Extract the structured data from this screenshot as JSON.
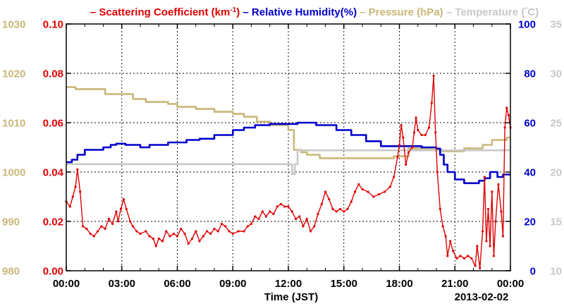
{
  "chart_data": {
    "type": "line",
    "legend": [
      {
        "prefix": "–",
        "text": "Scattering Coefficient (km",
        "sup": "-1",
        "suffix": ")",
        "color": "#e00000"
      },
      {
        "prefix": "–",
        "text": "Relative Humidity(%)",
        "color": "#0000cc"
      },
      {
        "prefix": "–",
        "text": "Pressure (hPa)",
        "color": "#c8b878"
      },
      {
        "prefix": "–",
        "text": "Temperature (",
        "glyph": "°",
        "suffix": "C)",
        "color": "#c8c8c8"
      }
    ],
    "xlabel": "Time (JST)",
    "date_label": "2013-02-02",
    "x_ticks": [
      "00:00",
      "03:00",
      "06:00",
      "09:00",
      "12:00",
      "15:00",
      "18:00",
      "21:00",
      "00:00"
    ],
    "x_range_hours": [
      0,
      24
    ],
    "grid": true,
    "axes": {
      "pressure": {
        "ticks": [
          "1030",
          "1020",
          "1010",
          "1000",
          "990",
          "980"
        ],
        "range": [
          980,
          1030
        ],
        "color": "#c8b878"
      },
      "scattering": {
        "ticks": [
          "0.10",
          "0.08",
          "0.06",
          "0.04",
          "0.02",
          "0.00"
        ],
        "range": [
          0,
          0.1
        ],
        "color": "#e00000"
      },
      "humidity": {
        "ticks": [
          "100",
          "80",
          "60",
          "40",
          "20",
          "0"
        ],
        "range": [
          0,
          100
        ],
        "color": "#0000cc"
      },
      "temperature": {
        "ticks": [
          "35",
          "30",
          "25",
          "20",
          "15",
          "10"
        ],
        "range": [
          10,
          35
        ],
        "color": "#c8c8c8"
      }
    },
    "series": [
      {
        "key": "pressure",
        "axis": "pressure",
        "color": "#c8b878",
        "step": true,
        "points": [
          [
            0,
            1017.2
          ],
          [
            0.5,
            1016.8
          ],
          [
            1.5,
            1016.8
          ],
          [
            2.1,
            1015.8
          ],
          [
            3.0,
            1015.8
          ],
          [
            3.6,
            1014.8
          ],
          [
            4.3,
            1014.2
          ],
          [
            5.5,
            1013.8
          ],
          [
            6.0,
            1013.2
          ],
          [
            7.0,
            1012.8
          ],
          [
            8.0,
            1012.2
          ],
          [
            9.0,
            1011.8
          ],
          [
            9.6,
            1011.2
          ],
          [
            10.3,
            1010.2
          ],
          [
            11.0,
            1009.5
          ],
          [
            12.0,
            1008.5
          ],
          [
            12.3,
            1004.5
          ],
          [
            12.7,
            1004.0
          ],
          [
            13.0,
            1003.5
          ],
          [
            13.7,
            1002.8
          ],
          [
            14.5,
            1002.8
          ],
          [
            15.0,
            1002.8
          ],
          [
            16.5,
            1002.8
          ],
          [
            17.7,
            1003.2
          ],
          [
            18.5,
            1004.8
          ],
          [
            19.5,
            1004.8
          ],
          [
            20.0,
            1004.5
          ],
          [
            20.3,
            1004.2
          ],
          [
            20.6,
            1004.2
          ],
          [
            21.5,
            1004.8
          ],
          [
            22.5,
            1005.5
          ],
          [
            23.0,
            1006.5
          ],
          [
            23.8,
            1007.0
          ],
          [
            24,
            1007.0
          ]
        ]
      },
      {
        "key": "temperature",
        "axis": "temperature",
        "color": "#c8c8c8",
        "step": true,
        "points": [
          [
            0,
            20.8
          ],
          [
            12.0,
            20.8
          ],
          [
            12.2,
            19.8
          ],
          [
            12.35,
            20.8
          ],
          [
            12.5,
            22.2
          ],
          [
            14.0,
            22.2
          ],
          [
            18.0,
            22.2
          ],
          [
            19.8,
            22.2
          ],
          [
            20.0,
            22.2
          ],
          [
            24,
            22.2
          ]
        ]
      },
      {
        "key": "humidity",
        "axis": "humidity",
        "color": "#0000cc",
        "step": true,
        "points": [
          [
            0,
            44
          ],
          [
            0.3,
            45
          ],
          [
            0.6,
            47
          ],
          [
            1.0,
            49
          ],
          [
            2.0,
            50
          ],
          [
            2.4,
            51
          ],
          [
            2.7,
            51.5
          ],
          [
            3.2,
            51
          ],
          [
            4.0,
            50
          ],
          [
            4.5,
            51
          ],
          [
            5.5,
            52
          ],
          [
            6.5,
            53
          ],
          [
            7.2,
            53.5
          ],
          [
            8.0,
            55
          ],
          [
            9.0,
            57
          ],
          [
            9.6,
            58
          ],
          [
            10.2,
            59
          ],
          [
            11.0,
            59.5
          ],
          [
            12.0,
            59.5
          ],
          [
            12.5,
            60
          ],
          [
            13.5,
            59
          ],
          [
            14.2,
            59
          ],
          [
            14.6,
            57
          ],
          [
            15.4,
            55
          ],
          [
            16.2,
            52.5
          ],
          [
            17.0,
            50.5
          ],
          [
            18.5,
            50.5
          ],
          [
            19.2,
            50
          ],
          [
            20.0,
            49.5
          ],
          [
            20.2,
            47
          ],
          [
            20.4,
            43
          ],
          [
            20.6,
            40
          ],
          [
            21.0,
            37
          ],
          [
            21.5,
            35.5
          ],
          [
            22.0,
            35.5
          ],
          [
            22.3,
            36.5
          ],
          [
            22.6,
            37.5
          ],
          [
            22.9,
            40
          ],
          [
            23.3,
            38
          ],
          [
            23.6,
            39
          ],
          [
            24,
            39
          ]
        ]
      },
      {
        "key": "scattering",
        "axis": "scattering",
        "color": "#e00000",
        "step": false,
        "markers": true,
        "points": [
          [
            0,
            0.028
          ],
          [
            0.2,
            0.026
          ],
          [
            0.35,
            0.03
          ],
          [
            0.5,
            0.034
          ],
          [
            0.6,
            0.041
          ],
          [
            0.75,
            0.032
          ],
          [
            0.9,
            0.018
          ],
          [
            1.1,
            0.017
          ],
          [
            1.3,
            0.015
          ],
          [
            1.5,
            0.014
          ],
          [
            1.7,
            0.016
          ],
          [
            1.9,
            0.018
          ],
          [
            2.1,
            0.017
          ],
          [
            2.3,
            0.021
          ],
          [
            2.5,
            0.019
          ],
          [
            2.7,
            0.024
          ],
          [
            2.8,
            0.02
          ],
          [
            2.95,
            0.025
          ],
          [
            3.1,
            0.029
          ],
          [
            3.25,
            0.025
          ],
          [
            3.45,
            0.02
          ],
          [
            3.6,
            0.018
          ],
          [
            3.8,
            0.016
          ],
          [
            4.0,
            0.015
          ],
          [
            4.3,
            0.016
          ],
          [
            4.5,
            0.014
          ],
          [
            4.7,
            0.013
          ],
          [
            4.85,
            0.01
          ],
          [
            5.0,
            0.013
          ],
          [
            5.2,
            0.012
          ],
          [
            5.4,
            0.016
          ],
          [
            5.6,
            0.014
          ],
          [
            5.8,
            0.015
          ],
          [
            6.0,
            0.014
          ],
          [
            6.2,
            0.017
          ],
          [
            6.4,
            0.015
          ],
          [
            6.6,
            0.011
          ],
          [
            6.8,
            0.013
          ],
          [
            7.0,
            0.016
          ],
          [
            7.2,
            0.012
          ],
          [
            7.4,
            0.014
          ],
          [
            7.6,
            0.016
          ],
          [
            7.8,
            0.015
          ],
          [
            8.0,
            0.017
          ],
          [
            8.2,
            0.016
          ],
          [
            8.4,
            0.019
          ],
          [
            8.6,
            0.018
          ],
          [
            8.8,
            0.016
          ],
          [
            9.0,
            0.015
          ],
          [
            9.3,
            0.016
          ],
          [
            9.6,
            0.016
          ],
          [
            9.8,
            0.018
          ],
          [
            10.0,
            0.019
          ],
          [
            10.2,
            0.022
          ],
          [
            10.4,
            0.021
          ],
          [
            10.6,
            0.024
          ],
          [
            10.8,
            0.022
          ],
          [
            11.0,
            0.024
          ],
          [
            11.2,
            0.023
          ],
          [
            11.4,
            0.026
          ],
          [
            11.6,
            0.027
          ],
          [
            11.8,
            0.026
          ],
          [
            12.0,
            0.026
          ],
          [
            12.2,
            0.024
          ],
          [
            12.4,
            0.021
          ],
          [
            12.6,
            0.022
          ],
          [
            12.8,
            0.018
          ],
          [
            13.0,
            0.021
          ],
          [
            13.2,
            0.016
          ],
          [
            13.4,
            0.018
          ],
          [
            13.6,
            0.023
          ],
          [
            13.8,
            0.027
          ],
          [
            14.0,
            0.032
          ],
          [
            14.2,
            0.029
          ],
          [
            14.4,
            0.025
          ],
          [
            14.6,
            0.024
          ],
          [
            14.8,
            0.025
          ],
          [
            15.0,
            0.024
          ],
          [
            15.2,
            0.025
          ],
          [
            15.4,
            0.028
          ],
          [
            15.6,
            0.032
          ],
          [
            15.8,
            0.035
          ],
          [
            16.0,
            0.033
          ],
          [
            16.3,
            0.032
          ],
          [
            16.6,
            0.03
          ],
          [
            16.9,
            0.031
          ],
          [
            17.2,
            0.032
          ],
          [
            17.5,
            0.034
          ],
          [
            17.7,
            0.038
          ],
          [
            17.9,
            0.046
          ],
          [
            18.0,
            0.051
          ],
          [
            18.1,
            0.059
          ],
          [
            18.2,
            0.054
          ],
          [
            18.35,
            0.043
          ],
          [
            18.5,
            0.048
          ],
          [
            18.7,
            0.05
          ],
          [
            18.8,
            0.056
          ],
          [
            18.9,
            0.062
          ],
          [
            19.0,
            0.057
          ],
          [
            19.2,
            0.055
          ],
          [
            19.4,
            0.055
          ],
          [
            19.6,
            0.058
          ],
          [
            19.75,
            0.068
          ],
          [
            19.85,
            0.079
          ],
          [
            19.95,
            0.056
          ],
          [
            20.05,
            0.04
          ],
          [
            20.2,
            0.025
          ],
          [
            20.35,
            0.018
          ],
          [
            20.5,
            0.014
          ],
          [
            20.6,
            0.006
          ],
          [
            20.75,
            0.012
          ],
          [
            20.9,
            0.008
          ],
          [
            21.1,
            0.005
          ],
          [
            21.3,
            0.006
          ],
          [
            21.5,
            0.005
          ],
          [
            21.7,
            0.006
          ],
          [
            21.9,
            0.005
          ],
          [
            22.1,
            0.002
          ],
          [
            22.2,
            0.01
          ],
          [
            22.35,
            0.001
          ],
          [
            22.5,
            0.016
          ],
          [
            22.6,
            0.038
          ],
          [
            22.7,
            0.012
          ],
          [
            22.8,
            0.025
          ],
          [
            22.9,
            0.01
          ],
          [
            23.0,
            0.032
          ],
          [
            23.1,
            0.006
          ],
          [
            23.2,
            0.02
          ],
          [
            23.35,
            0.035
          ],
          [
            23.5,
            0.024
          ],
          [
            23.6,
            0.014
          ],
          [
            23.7,
            0.058
          ],
          [
            23.8,
            0.066
          ],
          [
            23.9,
            0.063
          ],
          [
            24,
            0.058
          ]
        ]
      }
    ]
  }
}
